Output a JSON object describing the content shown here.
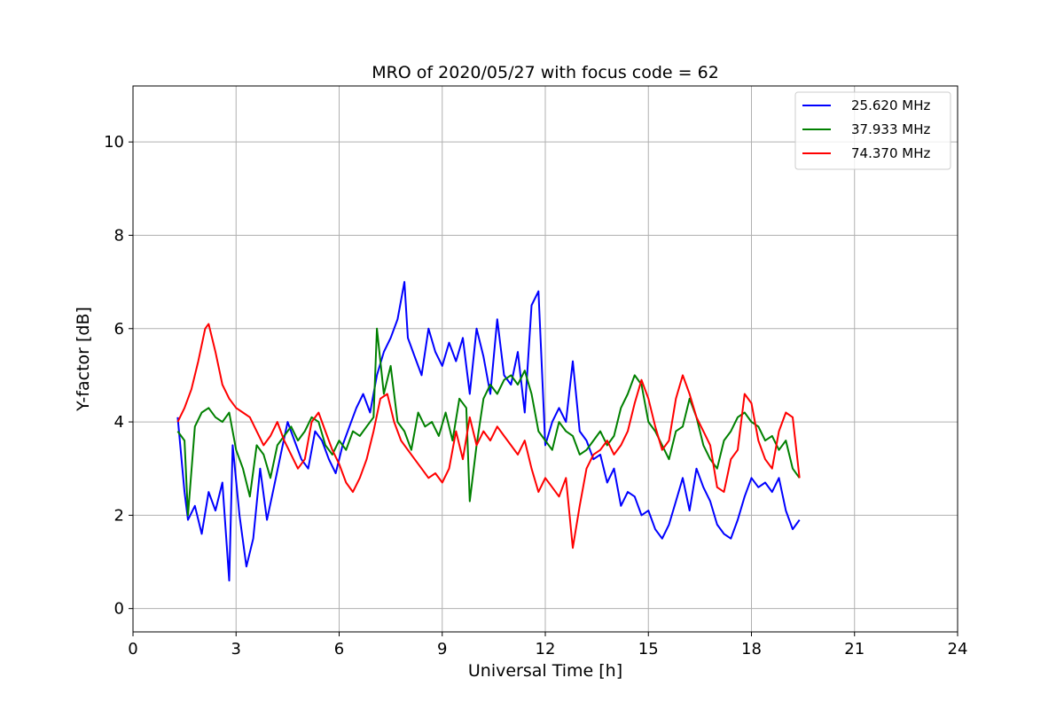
{
  "chart_data": {
    "type": "line",
    "title": "MRO of 2020/05/27 with focus code = 62",
    "xlabel": "Universal Time [h]",
    "ylabel": "Y-factor [dB]",
    "xlim": [
      0,
      24
    ],
    "ylim": [
      -0.5,
      11.2
    ],
    "xticks": [
      0,
      3,
      6,
      9,
      12,
      15,
      18,
      21,
      24
    ],
    "yticks": [
      0,
      2,
      4,
      6,
      8,
      10
    ],
    "grid": true,
    "legend": "top-right",
    "series": [
      {
        "name": "25.620 MHz",
        "color": "#0000ff",
        "x": [
          1.3,
          1.5,
          1.6,
          1.8,
          2.0,
          2.2,
          2.4,
          2.6,
          2.8,
          2.9,
          3.1,
          3.3,
          3.5,
          3.7,
          3.9,
          4.1,
          4.3,
          4.5,
          4.7,
          4.9,
          5.1,
          5.3,
          5.5,
          5.7,
          5.9,
          6.1,
          6.3,
          6.5,
          6.7,
          6.9,
          7.1,
          7.3,
          7.5,
          7.7,
          7.9,
          8.0,
          8.2,
          8.4,
          8.6,
          8.8,
          9.0,
          9.2,
          9.4,
          9.6,
          9.8,
          10.0,
          10.2,
          10.4,
          10.6,
          10.8,
          11.0,
          11.2,
          11.4,
          11.6,
          11.8,
          12.0,
          12.2,
          12.4,
          12.6,
          12.8,
          13.0,
          13.2,
          13.4,
          13.6,
          13.8,
          14.0,
          14.2,
          14.4,
          14.6,
          14.8,
          15.0,
          15.2,
          15.4,
          15.6,
          15.8,
          16.0,
          16.2,
          16.4,
          16.6,
          16.8,
          17.0,
          17.2,
          17.4,
          17.6,
          17.8,
          18.0,
          18.2,
          18.4,
          18.6,
          18.8,
          19.0,
          19.2,
          19.4
        ],
        "y": [
          4.1,
          2.5,
          1.9,
          2.2,
          1.6,
          2.5,
          2.1,
          2.7,
          0.6,
          3.5,
          2.0,
          0.9,
          1.5,
          3.0,
          1.9,
          2.6,
          3.3,
          4.0,
          3.6,
          3.2,
          3.0,
          3.8,
          3.6,
          3.2,
          2.9,
          3.5,
          3.9,
          4.3,
          4.6,
          4.2,
          5.0,
          5.5,
          5.8,
          6.2,
          7.0,
          5.8,
          5.4,
          5.0,
          6.0,
          5.5,
          5.2,
          5.7,
          5.3,
          5.8,
          4.6,
          6.0,
          5.4,
          4.6,
          6.2,
          5.0,
          4.8,
          5.5,
          4.2,
          6.5,
          6.8,
          3.5,
          4.0,
          4.3,
          4.0,
          5.3,
          3.8,
          3.6,
          3.2,
          3.3,
          2.7,
          3.0,
          2.2,
          2.5,
          2.4,
          2.0,
          2.1,
          1.7,
          1.5,
          1.8,
          2.3,
          2.8,
          2.1,
          3.0,
          2.6,
          2.3,
          1.8,
          1.6,
          1.5,
          1.9,
          2.4,
          2.8,
          2.6,
          2.7,
          2.5,
          2.8,
          2.1,
          1.7,
          1.9
        ]
      },
      {
        "name": "37.933 MHz",
        "color": "#008000",
        "x": [
          1.3,
          1.5,
          1.6,
          1.8,
          2.0,
          2.2,
          2.4,
          2.6,
          2.8,
          3.0,
          3.2,
          3.4,
          3.6,
          3.8,
          4.0,
          4.2,
          4.4,
          4.6,
          4.8,
          5.0,
          5.2,
          5.4,
          5.6,
          5.8,
          6.0,
          6.2,
          6.4,
          6.6,
          6.8,
          7.0,
          7.1,
          7.3,
          7.5,
          7.7,
          7.9,
          8.1,
          8.3,
          8.5,
          8.7,
          8.9,
          9.1,
          9.3,
          9.5,
          9.7,
          9.8,
          10.0,
          10.2,
          10.4,
          10.6,
          10.8,
          11.0,
          11.2,
          11.4,
          11.6,
          11.8,
          12.0,
          12.2,
          12.4,
          12.6,
          12.8,
          13.0,
          13.2,
          13.4,
          13.6,
          13.8,
          14.0,
          14.2,
          14.4,
          14.6,
          14.8,
          15.0,
          15.2,
          15.4,
          15.6,
          15.8,
          16.0,
          16.2,
          16.4,
          16.6,
          16.8,
          17.0,
          17.2,
          17.4,
          17.6,
          17.8,
          18.0,
          18.2,
          18.4,
          18.6,
          18.8,
          19.0,
          19.2,
          19.4
        ],
        "y": [
          3.8,
          3.6,
          2.0,
          3.9,
          4.2,
          4.3,
          4.1,
          4.0,
          4.2,
          3.4,
          3.0,
          2.4,
          3.5,
          3.3,
          2.8,
          3.5,
          3.7,
          3.9,
          3.6,
          3.8,
          4.1,
          4.0,
          3.5,
          3.3,
          3.6,
          3.4,
          3.8,
          3.7,
          3.9,
          4.1,
          6.0,
          4.6,
          5.2,
          4.0,
          3.8,
          3.4,
          4.2,
          3.9,
          4.0,
          3.7,
          4.2,
          3.6,
          4.5,
          4.3,
          2.3,
          3.5,
          4.5,
          4.8,
          4.6,
          4.9,
          5.0,
          4.8,
          5.1,
          4.6,
          3.8,
          3.6,
          3.4,
          4.0,
          3.8,
          3.7,
          3.3,
          3.4,
          3.6,
          3.8,
          3.5,
          3.7,
          4.3,
          4.6,
          5.0,
          4.8,
          4.0,
          3.8,
          3.5,
          3.2,
          3.8,
          3.9,
          4.5,
          4.1,
          3.5,
          3.2,
          3.0,
          3.6,
          3.8,
          4.1,
          4.2,
          4.0,
          3.9,
          3.6,
          3.7,
          3.4,
          3.6,
          3.0,
          2.8
        ]
      },
      {
        "name": "74.370 MHz",
        "color": "#ff0000",
        "x": [
          1.3,
          1.5,
          1.7,
          1.9,
          2.1,
          2.2,
          2.4,
          2.6,
          2.8,
          3.0,
          3.2,
          3.4,
          3.6,
          3.8,
          4.0,
          4.2,
          4.4,
          4.6,
          4.8,
          5.0,
          5.2,
          5.4,
          5.6,
          5.8,
          6.0,
          6.2,
          6.4,
          6.6,
          6.8,
          7.0,
          7.2,
          7.4,
          7.6,
          7.8,
          8.0,
          8.2,
          8.4,
          8.6,
          8.8,
          9.0,
          9.2,
          9.4,
          9.6,
          9.8,
          10.0,
          10.2,
          10.4,
          10.6,
          10.8,
          11.0,
          11.2,
          11.4,
          11.6,
          11.8,
          12.0,
          12.2,
          12.4,
          12.6,
          12.8,
          13.0,
          13.2,
          13.4,
          13.6,
          13.8,
          14.0,
          14.2,
          14.4,
          14.6,
          14.8,
          15.0,
          15.2,
          15.4,
          15.6,
          15.8,
          16.0,
          16.2,
          16.4,
          16.6,
          16.8,
          17.0,
          17.2,
          17.4,
          17.6,
          17.8,
          18.0,
          18.2,
          18.4,
          18.6,
          18.8,
          19.0,
          19.2,
          19.4
        ],
        "y": [
          4.0,
          4.3,
          4.7,
          5.3,
          6.0,
          6.1,
          5.5,
          4.8,
          4.5,
          4.3,
          4.2,
          4.1,
          3.8,
          3.5,
          3.7,
          4.0,
          3.6,
          3.3,
          3.0,
          3.2,
          4.0,
          4.2,
          3.8,
          3.4,
          3.1,
          2.7,
          2.5,
          2.8,
          3.2,
          3.8,
          4.5,
          4.6,
          4.0,
          3.6,
          3.4,
          3.2,
          3.0,
          2.8,
          2.9,
          2.7,
          3.0,
          3.8,
          3.2,
          4.1,
          3.5,
          3.8,
          3.6,
          3.9,
          3.7,
          3.5,
          3.3,
          3.6,
          3.0,
          2.5,
          2.8,
          2.6,
          2.4,
          2.8,
          1.3,
          2.2,
          3.0,
          3.3,
          3.4,
          3.6,
          3.3,
          3.5,
          3.8,
          4.4,
          4.9,
          4.5,
          3.9,
          3.4,
          3.6,
          4.5,
          5.0,
          4.6,
          4.1,
          3.8,
          3.5,
          2.6,
          2.5,
          3.2,
          3.4,
          4.6,
          4.4,
          3.6,
          3.2,
          3.0,
          3.8,
          4.2,
          4.1,
          2.8
        ]
      }
    ]
  }
}
